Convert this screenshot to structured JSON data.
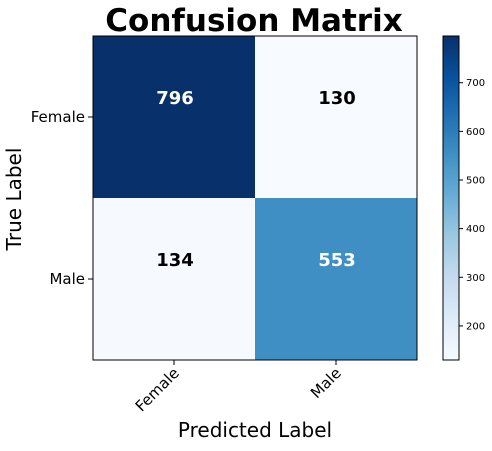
{
  "chart_data": {
    "type": "heatmap",
    "title": "Confusion Matrix",
    "xlabel": "Predicted Label",
    "ylabel": "True Label",
    "x_categories": [
      "Female",
      "Male"
    ],
    "y_categories": [
      "Female",
      "Male"
    ],
    "values": [
      [
        796,
        130
      ],
      [
        134,
        553
      ]
    ],
    "colormap": "Blues",
    "colorbar": {
      "range": [
        130,
        796
      ],
      "ticks": [
        200,
        300,
        400,
        500,
        600,
        700
      ]
    },
    "annotation_colors": {
      "light_cell_text": "#000000",
      "dark_cell_text": "#ffffff"
    }
  }
}
